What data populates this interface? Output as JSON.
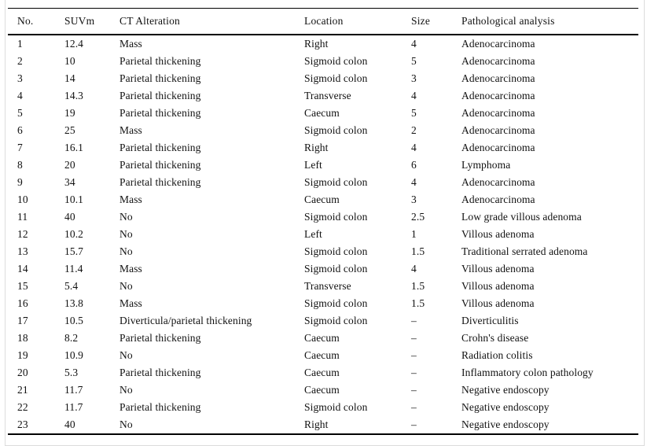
{
  "page": {
    "background_color": "#ffffff",
    "frame_border_color": "#dcdcdc",
    "rule_color": "#000000",
    "text_color": "#111111"
  },
  "table": {
    "columns": [
      "No.",
      "SUVm",
      "CT Alteration",
      "Location",
      "Size",
      "Pathological analysis"
    ],
    "rows": [
      {
        "no": "1",
        "suvm": "12.4",
        "ct": "Mass",
        "location": "Right",
        "size": "4",
        "pathology": "Adenocarcinoma"
      },
      {
        "no": "2",
        "suvm": "10",
        "ct": "Parietal thickening",
        "location": "Sigmoid colon",
        "size": "5",
        "pathology": "Adenocarcinoma"
      },
      {
        "no": "3",
        "suvm": "14",
        "ct": "Parietal thickening",
        "location": "Sigmoid colon",
        "size": "3",
        "pathology": "Adenocarcinoma"
      },
      {
        "no": "4",
        "suvm": "14.3",
        "ct": "Parietal thickening",
        "location": "Transverse",
        "size": "4",
        "pathology": "Adenocarcinoma"
      },
      {
        "no": "5",
        "suvm": "19",
        "ct": "Parietal thickening",
        "location": "Caecum",
        "size": "5",
        "pathology": "Adenocarcinoma"
      },
      {
        "no": "6",
        "suvm": "25",
        "ct": "Mass",
        "location": "Sigmoid colon",
        "size": "2",
        "pathology": "Adenocarcinoma"
      },
      {
        "no": "7",
        "suvm": "16.1",
        "ct": "Parietal thickening",
        "location": "Right",
        "size": "4",
        "pathology": "Adenocarcinoma"
      },
      {
        "no": "8",
        "suvm": "20",
        "ct": "Parietal thickening",
        "location": "Left",
        "size": "6",
        "pathology": "Lymphoma"
      },
      {
        "no": "9",
        "suvm": "34",
        "ct": "Parietal thickening",
        "location": "Sigmoid colon",
        "size": "4",
        "pathology": "Adenocarcinoma"
      },
      {
        "no": "10",
        "suvm": "10.1",
        "ct": "Mass",
        "location": "Caecum",
        "size": "3",
        "pathology": "Adenocarcinoma"
      },
      {
        "no": "11",
        "suvm": "40",
        "ct": "No",
        "location": "Sigmoid colon",
        "size": "2.5",
        "pathology": "Low grade villous adenoma"
      },
      {
        "no": "12",
        "suvm": "10.2",
        "ct": "No",
        "location": "Left",
        "size": "1",
        "pathology": "Villous adenoma"
      },
      {
        "no": "13",
        "suvm": "15.7",
        "ct": "No",
        "location": "Sigmoid colon",
        "size": "1.5",
        "pathology": "Traditional serrated adenoma"
      },
      {
        "no": "14",
        "suvm": "11.4",
        "ct": "Mass",
        "location": "Sigmoid colon",
        "size": "4",
        "pathology": "Villous adenoma"
      },
      {
        "no": "15",
        "suvm": "5.4",
        "ct": "No",
        "location": "Transverse",
        "size": "1.5",
        "pathology": "Villous adenoma"
      },
      {
        "no": "16",
        "suvm": "13.8",
        "ct": "Mass",
        "location": "Sigmoid colon",
        "size": "1.5",
        "pathology": "Villous adenoma"
      },
      {
        "no": "17",
        "suvm": "10.5",
        "ct": "Diverticula/parietal thickening",
        "location": "Sigmoid colon",
        "size": "–",
        "pathology": "Diverticulitis"
      },
      {
        "no": "18",
        "suvm": "8.2",
        "ct": "Parietal thickening",
        "location": "Caecum",
        "size": "–",
        "pathology": "Crohn's disease"
      },
      {
        "no": "19",
        "suvm": "10.9",
        "ct": "No",
        "location": "Caecum",
        "size": "–",
        "pathology": "Radiation colitis"
      },
      {
        "no": "20",
        "suvm": "5.3",
        "ct": "Parietal thickening",
        "location": "Caecum",
        "size": "–",
        "pathology": "Inflammatory colon pathology"
      },
      {
        "no": "21",
        "suvm": "11.7",
        "ct": "No",
        "location": "Caecum",
        "size": "–",
        "pathology": "Negative endoscopy"
      },
      {
        "no": "22",
        "suvm": "11.7",
        "ct": "Parietal thickening",
        "location": "Sigmoid colon",
        "size": "–",
        "pathology": "Negative endoscopy"
      },
      {
        "no": "23",
        "suvm": "40",
        "ct": "No",
        "location": "Right",
        "size": "–",
        "pathology": "Negative endoscopy"
      }
    ]
  }
}
